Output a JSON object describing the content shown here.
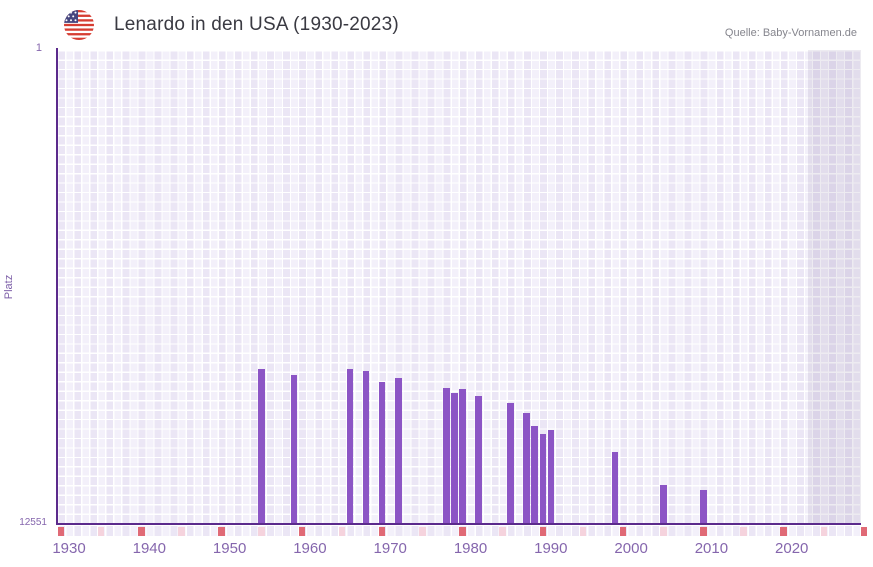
{
  "header": {
    "title": "Lenardo in den USA (1930-2023)",
    "flag_icon": "us-flag-icon",
    "source": "Quelle: Baby-Vornamen.de"
  },
  "chart_data": {
    "type": "bar",
    "title": "Lenardo in den USA (1930-2023)",
    "xlabel": "",
    "ylabel": "Platz",
    "y_axis": {
      "top_tick_label": "1",
      "bottom_tick_label": "12551",
      "min_rank": 1,
      "max_rank": 12551,
      "inverted": true,
      "scale": "linear"
    },
    "x_axis": {
      "data_start_year": 1930,
      "data_end_year": 2023,
      "drawn_end_year": 2030,
      "tick_years": [
        1930,
        1940,
        1950,
        1960,
        1970,
        1980,
        1990,
        2000,
        2010,
        2020
      ]
    },
    "points": [
      {
        "year": 1955,
        "rank": 8460
      },
      {
        "year": 1959,
        "rank": 8620
      },
      {
        "year": 1966,
        "rank": 8460
      },
      {
        "year": 1968,
        "rank": 8520
      },
      {
        "year": 1970,
        "rank": 8820
      },
      {
        "year": 1972,
        "rank": 8710
      },
      {
        "year": 1978,
        "rank": 8960
      },
      {
        "year": 1979,
        "rank": 9110
      },
      {
        "year": 1980,
        "rank": 8990
      },
      {
        "year": 1982,
        "rank": 9170
      },
      {
        "year": 1986,
        "rank": 9360
      },
      {
        "year": 1988,
        "rank": 9640
      },
      {
        "year": 1989,
        "rank": 9980
      },
      {
        "year": 1990,
        "rank": 10200
      },
      {
        "year": 1991,
        "rank": 10080
      },
      {
        "year": 1999,
        "rank": 10670
      },
      {
        "year": 2005,
        "rank": 11550
      },
      {
        "year": 2010,
        "rank": 11670
      }
    ],
    "decade_marker_years": [
      1930,
      1940,
      1950,
      1960,
      1970,
      1980,
      1990,
      2000,
      2010,
      2020,
      2030
    ],
    "half_decade_marker_years": [
      1935,
      1945,
      1955,
      1965,
      1975,
      1985,
      1995,
      2005,
      2015,
      2025
    ],
    "future_band_start_year": 2023.5,
    "grid": true,
    "legend": "none",
    "colors": {
      "bar": "#8c55c5",
      "axis": "#5b2a8c",
      "decade_marker": "#e06a76",
      "half_decade_marker": "#f5d3dd",
      "tick_label": "#8566ad",
      "title_text": "#3a3a42",
      "source_text": "#85858d",
      "plot_bg_light": "#f3f0fa",
      "plot_bg_dark": "#ebe6f5"
    }
  }
}
